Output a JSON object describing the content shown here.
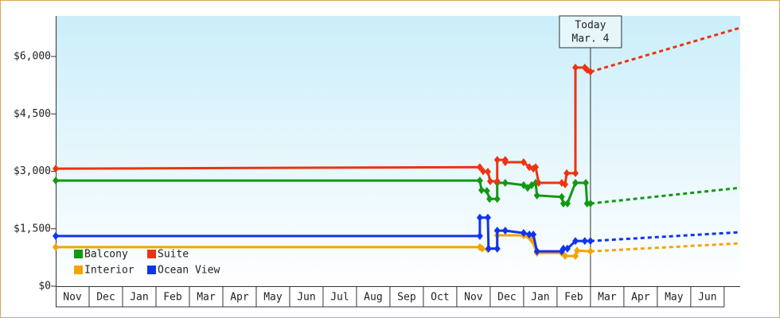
{
  "chart_data": {
    "type": "line",
    "categories": [
      "Nov",
      "Dec",
      "Jan",
      "Feb",
      "Mar",
      "Apr",
      "May",
      "Jun",
      "Jul",
      "Aug",
      "Sep",
      "Oct",
      "Nov",
      "Dec",
      "Jan",
      "Feb",
      "Mar",
      "Apr",
      "May",
      "Jun"
    ],
    "xlim": [
      0,
      20.48
    ],
    "ylim": [
      0,
      7060
    ],
    "yticks": [
      {
        "value": 0,
        "label": "$0"
      },
      {
        "value": 1500,
        "label": "$1,500"
      },
      {
        "value": 3000,
        "label": "$3,000"
      },
      {
        "value": 4500,
        "label": "$4,500"
      },
      {
        "value": 6000,
        "label": "$6,000"
      }
    ],
    "legend": "lower left",
    "today": {
      "label": "Today",
      "date": "Mar. 4",
      "x": 16.0
    },
    "series": [
      {
        "name": "Balcony",
        "color": "#119911",
        "x": [
          0,
          12.69,
          12.74,
          12.9,
          12.98,
          13.21,
          13.21,
          13.45,
          14.0,
          14.12,
          14.24,
          14.36,
          14.4,
          15.14,
          15.19,
          15.31,
          15.55,
          15.86,
          15.9,
          16.0,
          20.48
        ],
        "values": [
          2760,
          2760,
          2510,
          2490,
          2280,
          2280,
          2700,
          2700,
          2640,
          2570,
          2640,
          2700,
          2370,
          2330,
          2160,
          2160,
          2700,
          2700,
          2160,
          2160,
          2570
        ]
      },
      {
        "name": "Suite",
        "color": "#ee3311",
        "x": [
          0,
          12.69,
          12.79,
          12.93,
          13.0,
          13.21,
          13.21,
          13.45,
          13.45,
          14.0,
          14.17,
          14.29,
          14.36,
          14.45,
          15.14,
          15.24,
          15.29,
          15.55,
          15.55,
          15.83,
          15.9,
          16.0,
          20.48
        ],
        "values": [
          3070,
          3110,
          3000,
          2990,
          2740,
          2740,
          3300,
          3300,
          3240,
          3240,
          3110,
          3070,
          3110,
          2700,
          2700,
          2660,
          2950,
          2950,
          5710,
          5710,
          5650,
          5600,
          6750
        ]
      },
      {
        "name": "Interior",
        "color": "#f5a300",
        "x": [
          0,
          12.69,
          12.76,
          12.93,
          12.95,
          13.21,
          13.21,
          14.0,
          14.24,
          14.4,
          15.14,
          15.24,
          15.55,
          15.6,
          16.0,
          20.48
        ],
        "values": [
          1020,
          1020,
          980,
          960,
          980,
          980,
          1330,
          1330,
          1210,
          870,
          870,
          790,
          790,
          930,
          910,
          1120
        ]
      },
      {
        "name": "Ocean View",
        "color": "#1133ee",
        "x": [
          0,
          12.69,
          12.69,
          12.93,
          12.95,
          13.21,
          13.21,
          13.45,
          14.0,
          14.17,
          14.29,
          14.4,
          15.14,
          15.19,
          15.31,
          15.55,
          15.83,
          16.0,
          20.48
        ],
        "values": [
          1310,
          1310,
          1790,
          1790,
          980,
          980,
          1450,
          1450,
          1390,
          1350,
          1350,
          910,
          910,
          980,
          980,
          1180,
          1180,
          1180,
          1410
        ]
      }
    ]
  }
}
